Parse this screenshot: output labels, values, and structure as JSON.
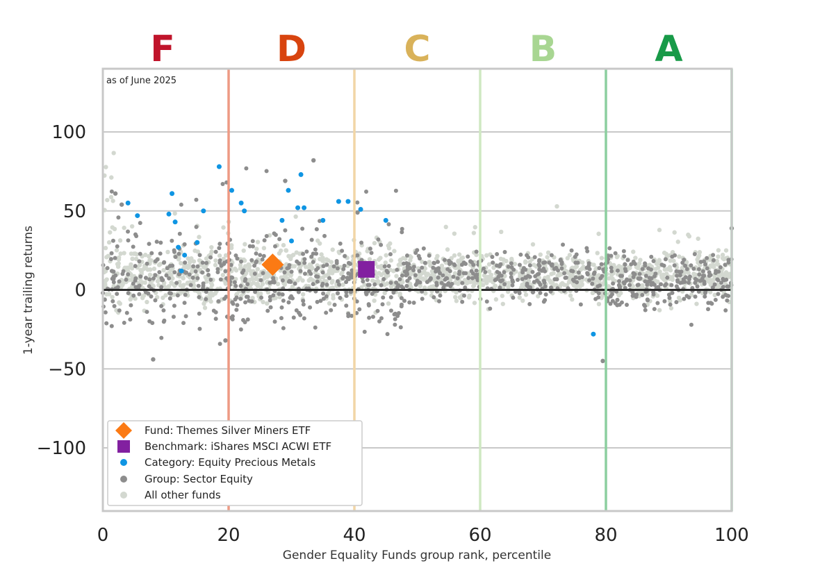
{
  "chart_data": {
    "type": "scatter",
    "note": "as of June 2025",
    "xlabel": "Gender Equality Funds group rank, percentile",
    "ylabel": "1-year trailing returns",
    "xlim": [
      0,
      100
    ],
    "ylim": [
      -140,
      140
    ],
    "x_ticks": [
      0,
      20,
      40,
      60,
      80,
      100
    ],
    "y_ticks": [
      -100,
      -50,
      0,
      50,
      100
    ],
    "grid": "horizontal",
    "legend_position": "bottom-left",
    "grade_bands": [
      {
        "label": "F",
        "x_from": 0,
        "x_to": 20,
        "center": 9.5,
        "color": "#c0142b",
        "line_color": "#ee9a84"
      },
      {
        "label": "D",
        "x_from": 20,
        "x_to": 40,
        "center": 30,
        "color": "#d8440f",
        "line_color": "#f2d6a6"
      },
      {
        "label": "C",
        "x_from": 40,
        "x_to": 60,
        "center": 50,
        "color": "#d9b25a",
        "line_color": "#cfe8c2"
      },
      {
        "label": "B",
        "x_from": 60,
        "x_to": 80,
        "center": 70,
        "color": "#a8d692",
        "line_color": "#8ccf9f"
      },
      {
        "label": "A",
        "x_from": 80,
        "x_to": 100,
        "center": 90,
        "color": "#189a48",
        "line_color": "#8ccf9f"
      }
    ],
    "fund": {
      "name": "Fund: Themes Silver Miners ETF",
      "x": 27,
      "y": 16,
      "color": "#fb7a14"
    },
    "benchmark": {
      "name": "Benchmark: iShares MSCI ACWI ETF",
      "x": 41.9,
      "y": 13,
      "color": "#8220a0"
    },
    "category": {
      "name": "Category: Equity Precious Metals",
      "color": "#0f95e3",
      "points": [
        [
          4,
          55
        ],
        [
          5.5,
          47
        ],
        [
          10.5,
          48
        ],
        [
          11,
          61
        ],
        [
          11.5,
          43
        ],
        [
          12,
          27
        ],
        [
          12.5,
          12
        ],
        [
          13,
          22
        ],
        [
          15,
          30
        ],
        [
          16,
          50
        ],
        [
          18.5,
          78
        ],
        [
          20.5,
          63
        ],
        [
          22,
          55
        ],
        [
          22.5,
          50
        ],
        [
          28.5,
          44
        ],
        [
          29.5,
          63
        ],
        [
          30,
          31
        ],
        [
          31,
          52
        ],
        [
          31.5,
          73
        ],
        [
          32,
          52
        ],
        [
          35,
          44
        ],
        [
          37.5,
          56
        ],
        [
          39,
          56
        ],
        [
          41,
          51
        ],
        [
          45,
          44
        ],
        [
          78,
          -28
        ]
      ]
    },
    "group": {
      "name": "Group: Sector Equity",
      "color": "#8d8d8d",
      "summary": {
        "x_range": [
          0,
          100
        ],
        "typical_y_range": [
          -15,
          30
        ],
        "outliers": [
          [
            2,
            61
          ],
          [
            3,
            54
          ],
          [
            8,
            -44
          ],
          [
            19.5,
            -32
          ],
          [
            33.5,
            82
          ],
          [
            29,
            69
          ],
          [
            40.5,
            49
          ],
          [
            79.5,
            -45
          ],
          [
            100,
            39
          ]
        ]
      }
    },
    "others": {
      "name": "All other funds",
      "color": "#d3d8d0",
      "summary": {
        "x_range": [
          0,
          100
        ],
        "typical_y_range": [
          -5,
          25
        ]
      }
    }
  }
}
